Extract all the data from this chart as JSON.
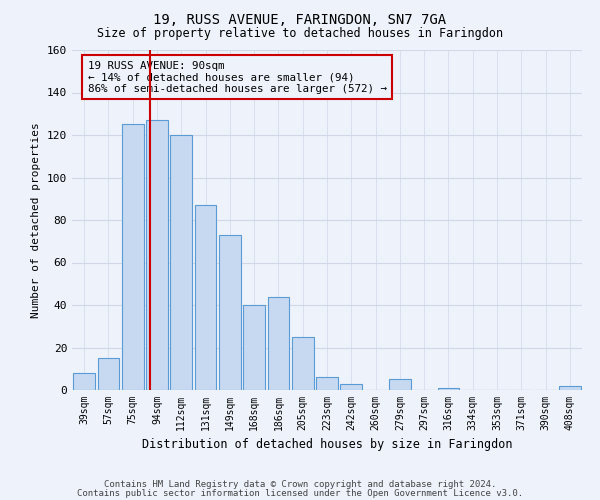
{
  "title": "19, RUSS AVENUE, FARINGDON, SN7 7GA",
  "subtitle": "Size of property relative to detached houses in Faringdon",
  "xlabel": "Distribution of detached houses by size in Faringdon",
  "ylabel": "Number of detached properties",
  "bar_labels": [
    "39sqm",
    "57sqm",
    "75sqm",
    "94sqm",
    "112sqm",
    "131sqm",
    "149sqm",
    "168sqm",
    "186sqm",
    "205sqm",
    "223sqm",
    "242sqm",
    "260sqm",
    "279sqm",
    "297sqm",
    "316sqm",
    "334sqm",
    "353sqm",
    "371sqm",
    "390sqm",
    "408sqm"
  ],
  "bar_heights": [
    8,
    15,
    125,
    127,
    120,
    87,
    73,
    40,
    44,
    25,
    6,
    3,
    0,
    5,
    0,
    1,
    0,
    0,
    0,
    0,
    2
  ],
  "bar_color": "#c6d9f1",
  "bar_edge_color": "#5b9bd5",
  "vline_color": "#cc0000",
  "annotation_text": "19 RUSS AVENUE: 90sqm\n← 14% of detached houses are smaller (94)\n86% of semi-detached houses are larger (572) →",
  "annotation_box_edge": "#cc0000",
  "ylim": [
    0,
    160
  ],
  "yticks": [
    0,
    20,
    40,
    60,
    80,
    100,
    120,
    140,
    160
  ],
  "footer_line1": "Contains HM Land Registry data © Crown copyright and database right 2024.",
  "footer_line2": "Contains public sector information licensed under the Open Government Licence v3.0.",
  "bg_color": "#edf2fb"
}
